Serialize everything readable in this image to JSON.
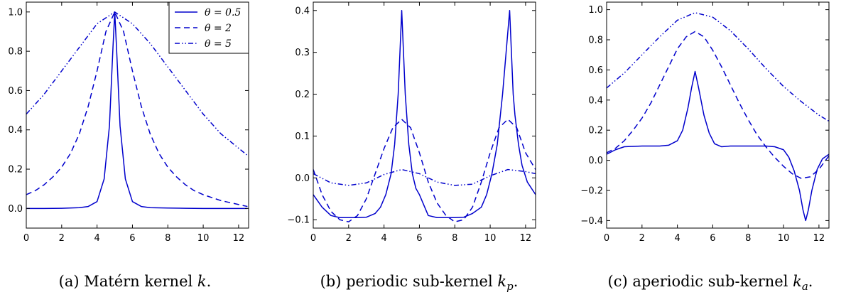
{
  "figure": {
    "line_color": "#0000cc"
  },
  "chart_data": [
    {
      "type": "line",
      "caption": "(a) Matérn kernel",
      "caption_var": "k",
      "caption_sub": "",
      "xlim": [
        0,
        12.566
      ],
      "ylim": [
        -0.1,
        1.05
      ],
      "xticks": [
        0,
        2,
        4,
        6,
        8,
        10,
        12
      ],
      "xtick_labels": [
        "0",
        "2",
        "4",
        "6",
        "8",
        "10",
        "12"
      ],
      "yticks": [
        0.0,
        0.2,
        0.4,
        0.6,
        0.8,
        1.0
      ],
      "ytick_labels": [
        "0.0",
        "0.2",
        "0.4",
        "0.6",
        "0.8",
        "1.0"
      ],
      "legend": {
        "location": "upper-right",
        "entries": [
          "θ = 0.5",
          "θ = 2",
          "θ = 5"
        ]
      },
      "series": [
        {
          "name": "θ = 0.5",
          "style": "solid",
          "x": [
            0,
            1,
            2,
            3,
            3.5,
            4,
            4.4,
            4.7,
            4.9,
            5.0,
            5.1,
            5.3,
            5.6,
            6.0,
            6.5,
            7,
            8,
            9,
            10,
            11,
            12.5
          ],
          "y": [
            0,
            0,
            0.001,
            0.004,
            0.01,
            0.035,
            0.15,
            0.42,
            0.82,
            1.0,
            0.82,
            0.42,
            0.15,
            0.035,
            0.01,
            0.004,
            0.002,
            0.001,
            0,
            0,
            0
          ]
        },
        {
          "name": "θ = 2",
          "style": "dashed",
          "x": [
            0,
            0.5,
            1,
            1.5,
            2,
            2.5,
            3,
            3.5,
            4,
            4.5,
            5,
            5.5,
            6,
            6.5,
            7,
            7.5,
            8,
            8.5,
            9,
            9.5,
            10,
            11,
            12.5
          ],
          "y": [
            0.07,
            0.09,
            0.12,
            0.16,
            0.21,
            0.28,
            0.38,
            0.52,
            0.7,
            0.9,
            1.0,
            0.9,
            0.7,
            0.52,
            0.38,
            0.28,
            0.21,
            0.16,
            0.12,
            0.09,
            0.07,
            0.04,
            0.01
          ]
        },
        {
          "name": "θ = 5",
          "style": "dashdotdot",
          "x": [
            0,
            1,
            2,
            3,
            4,
            5,
            6,
            7,
            8,
            9,
            10,
            11,
            12.5
          ],
          "y": [
            0.48,
            0.58,
            0.7,
            0.82,
            0.94,
            1.0,
            0.94,
            0.84,
            0.72,
            0.6,
            0.48,
            0.38,
            0.27
          ]
        }
      ]
    },
    {
      "type": "line",
      "caption": "(b) periodic sub-kernel",
      "caption_var": "k",
      "caption_sub": "p",
      "xlim": [
        0,
        12.566
      ],
      "ylim": [
        -0.12,
        0.42
      ],
      "xticks": [
        0,
        2,
        4,
        6,
        8,
        10,
        12
      ],
      "xtick_labels": [
        "0",
        "2",
        "4",
        "6",
        "8",
        "10",
        "12"
      ],
      "yticks": [
        -0.1,
        0.0,
        0.1,
        0.2,
        0.3,
        0.4
      ],
      "ytick_labels": [
        "−0.1",
        "0.0",
        "0.1",
        "0.2",
        "0.3",
        "0.4"
      ],
      "series": [
        {
          "name": "θ = 0.5",
          "style": "solid",
          "x": [
            0,
            0.5,
            1,
            1.5,
            2,
            2.5,
            3,
            3.5,
            3.8,
            4.1,
            4.4,
            4.6,
            4.8,
            4.9,
            5.0,
            5.1,
            5.2,
            5.4,
            5.6,
            5.8,
            6.0,
            6.2,
            6.5,
            7,
            7.5,
            8,
            8.5,
            9,
            9.5,
            9.8,
            10.1,
            10.4,
            10.7,
            10.9,
            11.1,
            11.2,
            11.3,
            11.4,
            11.6,
            11.8,
            12.1,
            12.566
          ],
          "y": [
            -0.04,
            -0.07,
            -0.09,
            -0.095,
            -0.095,
            -0.095,
            -0.094,
            -0.085,
            -0.07,
            -0.04,
            0.01,
            0.08,
            0.2,
            0.3,
            0.4,
            0.3,
            0.2,
            0.08,
            0.01,
            -0.025,
            -0.04,
            -0.06,
            -0.09,
            -0.095,
            -0.095,
            -0.095,
            -0.094,
            -0.085,
            -0.07,
            -0.04,
            0.01,
            0.08,
            0.2,
            0.3,
            0.4,
            0.3,
            0.2,
            0.15,
            0.08,
            0.03,
            -0.01,
            -0.04
          ]
        },
        {
          "name": "θ = 2",
          "style": "dashed",
          "x": [
            0,
            0.5,
            1,
            1.5,
            2,
            2.5,
            3,
            3.5,
            4,
            4.5,
            5,
            5.5,
            6,
            6.5,
            7,
            7.5,
            8,
            8.5,
            9,
            9.5,
            10,
            10.5,
            11,
            11.5,
            12,
            12.566
          ],
          "y": [
            0.02,
            -0.04,
            -0.08,
            -0.1,
            -0.105,
            -0.09,
            -0.05,
            0.01,
            0.07,
            0.12,
            0.14,
            0.12,
            0.06,
            -0.01,
            -0.06,
            -0.09,
            -0.105,
            -0.1,
            -0.07,
            -0.01,
            0.06,
            0.12,
            0.14,
            0.12,
            0.06,
            0.02
          ]
        },
        {
          "name": "θ = 5",
          "style": "dashdotdot",
          "x": [
            0,
            1,
            2,
            3,
            4,
            5,
            6,
            7,
            8,
            9,
            10,
            11,
            12,
            12.566
          ],
          "y": [
            0.01,
            -0.012,
            -0.018,
            -0.012,
            0.008,
            0.02,
            0.01,
            -0.01,
            -0.018,
            -0.015,
            0.005,
            0.02,
            0.015,
            0.01
          ]
        }
      ]
    },
    {
      "type": "line",
      "caption": "(c) aperiodic sub-kernel",
      "caption_var": "k",
      "caption_sub": "a",
      "xlim": [
        0,
        12.566
      ],
      "ylim": [
        -0.45,
        1.05
      ],
      "xticks": [
        0,
        2,
        4,
        6,
        8,
        10,
        12
      ],
      "xtick_labels": [
        "0",
        "2",
        "4",
        "6",
        "8",
        "10",
        "12"
      ],
      "yticks": [
        -0.4,
        -0.2,
        0.0,
        0.2,
        0.4,
        0.6,
        0.8,
        1.0
      ],
      "ytick_labels": [
        "−0.4",
        "−0.2",
        "0.0",
        "0.2",
        "0.4",
        "0.6",
        "0.8",
        "1.0"
      ],
      "series": [
        {
          "name": "θ = 0.5",
          "style": "solid",
          "x": [
            0,
            0.5,
            1,
            2,
            3,
            3.5,
            4,
            4.3,
            4.6,
            4.8,
            5.0,
            5.2,
            5.5,
            5.8,
            6.1,
            6.5,
            7,
            8,
            9,
            9.5,
            10,
            10.3,
            10.6,
            10.9,
            11.1,
            11.25,
            11.4,
            11.6,
            11.9,
            12.2,
            12.566
          ],
          "y": [
            0.04,
            0.07,
            0.09,
            0.095,
            0.095,
            0.1,
            0.13,
            0.2,
            0.35,
            0.48,
            0.59,
            0.48,
            0.3,
            0.18,
            0.11,
            0.09,
            0.095,
            0.095,
            0.095,
            0.09,
            0.07,
            0.02,
            -0.07,
            -0.2,
            -0.33,
            -0.4,
            -0.33,
            -0.2,
            -0.06,
            0.01,
            0.04
          ]
        },
        {
          "name": "θ = 2",
          "style": "dashed",
          "x": [
            0,
            0.5,
            1,
            1.5,
            2,
            2.5,
            3,
            3.5,
            4,
            4.5,
            5,
            5.5,
            6,
            6.5,
            7,
            7.5,
            8,
            8.5,
            9,
            9.5,
            10,
            10.5,
            11,
            11.5,
            12,
            12.566
          ],
          "y": [
            0.05,
            0.08,
            0.13,
            0.2,
            0.28,
            0.38,
            0.5,
            0.62,
            0.74,
            0.82,
            0.855,
            0.82,
            0.73,
            0.62,
            0.5,
            0.38,
            0.27,
            0.17,
            0.09,
            0.02,
            -0.04,
            -0.09,
            -0.12,
            -0.11,
            -0.06,
            0.03
          ]
        },
        {
          "name": "θ = 5",
          "style": "dashdotdot",
          "x": [
            0,
            1,
            2,
            3,
            4,
            5,
            6,
            7,
            8,
            9,
            10,
            11,
            12,
            12.566
          ],
          "y": [
            0.48,
            0.58,
            0.7,
            0.82,
            0.93,
            0.98,
            0.95,
            0.86,
            0.74,
            0.61,
            0.49,
            0.39,
            0.3,
            0.26
          ]
        }
      ]
    }
  ]
}
